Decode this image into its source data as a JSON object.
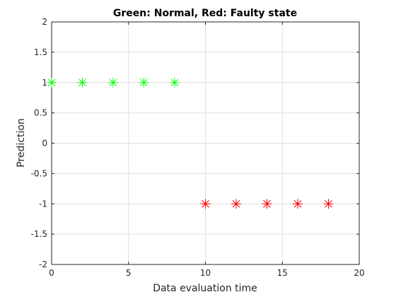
{
  "chart_data": {
    "type": "scatter",
    "title": "Green: Normal, Red: Faulty state",
    "xlabel": "Data evaluation time",
    "ylabel": "Prediction",
    "xlim": [
      0,
      20
    ],
    "ylim": [
      -2,
      2
    ],
    "xticks": [
      0,
      5,
      10,
      15,
      20
    ],
    "yticks": [
      -2,
      -1.5,
      -1,
      -0.5,
      0,
      0.5,
      1,
      1.5,
      2
    ],
    "xtick_labels": [
      "0",
      "5",
      "10",
      "15",
      "20"
    ],
    "ytick_labels": [
      "-2",
      "-1.5",
      "-1",
      "-0.5",
      "0",
      "0.5",
      "1",
      "1.5",
      "2"
    ],
    "grid": true,
    "marker": "asterisk",
    "series": [
      {
        "color": "#00ff00",
        "x": [
          0,
          2,
          4,
          6,
          8
        ],
        "y": [
          1,
          1,
          1,
          1,
          1
        ]
      },
      {
        "color": "#ff0000",
        "x": [
          10,
          12,
          14,
          16,
          18
        ],
        "y": [
          -1,
          -1,
          -1,
          -1,
          -1
        ]
      }
    ]
  }
}
